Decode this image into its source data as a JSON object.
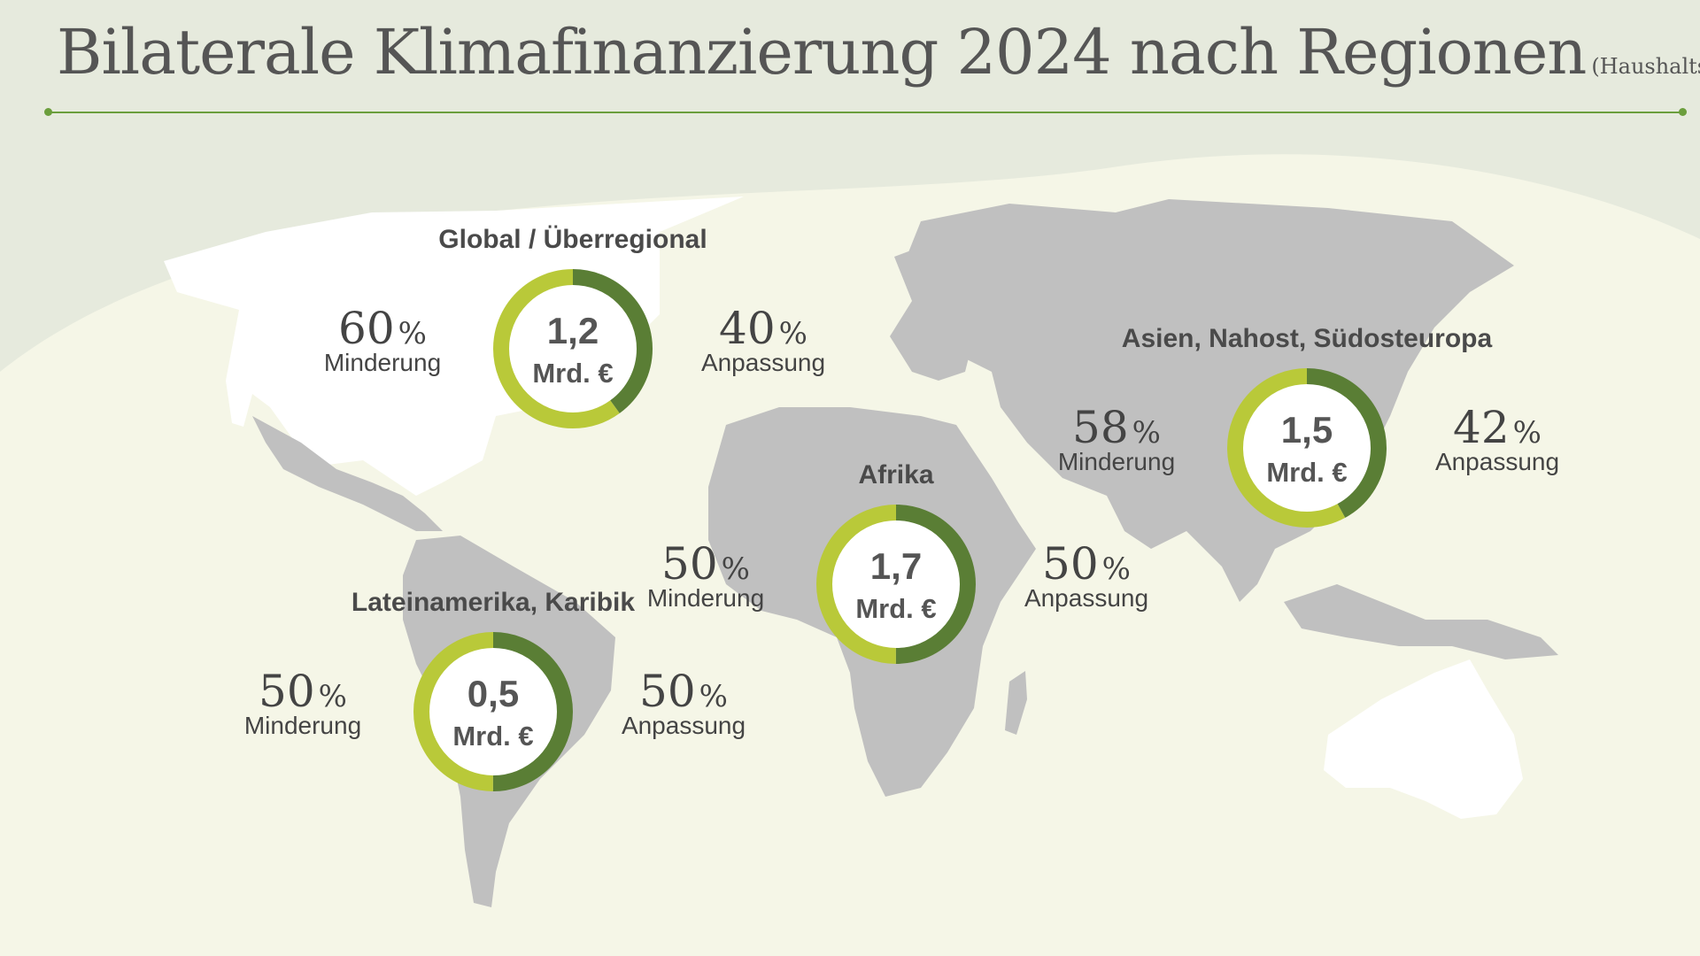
{
  "title": "Bilaterale Klimafinanzierung 2024 nach Regionen",
  "subtitle": "(Haushaltsmittel)",
  "colors": {
    "minderung": "#b9c939",
    "anpassung": "#5a7e35",
    "background": "#e6eadd",
    "map_panel": "#f5f6e7",
    "land": "#c0c0c0",
    "land_highlight": "#ffffff",
    "rule": "#6b9e3c"
  },
  "chart_data": [
    {
      "type": "pie",
      "region": "Global / Überregional",
      "total_value": "1,2",
      "total_unit": "Mrd. €",
      "categories": [
        "Minderung",
        "Anpassung"
      ],
      "values": [
        60,
        40
      ],
      "value_labels": [
        "60",
        "40"
      ],
      "percent_sign": "%"
    },
    {
      "type": "pie",
      "region": "Asien, Nahost, Südosteuropa",
      "total_value": "1,5",
      "total_unit": "Mrd. €",
      "categories": [
        "Minderung",
        "Anpassung"
      ],
      "values": [
        58,
        42
      ],
      "value_labels": [
        "58",
        "42"
      ],
      "percent_sign": "%"
    },
    {
      "type": "pie",
      "region": "Afrika",
      "total_value": "1,7",
      "total_unit": "Mrd. €",
      "categories": [
        "Minderung",
        "Anpassung"
      ],
      "values": [
        50,
        50
      ],
      "value_labels": [
        "50",
        "50"
      ],
      "percent_sign": "%"
    },
    {
      "type": "pie",
      "region": "Lateinamerika, Karibik",
      "total_value": "0,5",
      "total_unit": "Mrd. €",
      "categories": [
        "Minderung",
        "Anpassung"
      ],
      "values": [
        50,
        50
      ],
      "value_labels": [
        "50",
        "50"
      ],
      "percent_sign": "%"
    }
  ]
}
